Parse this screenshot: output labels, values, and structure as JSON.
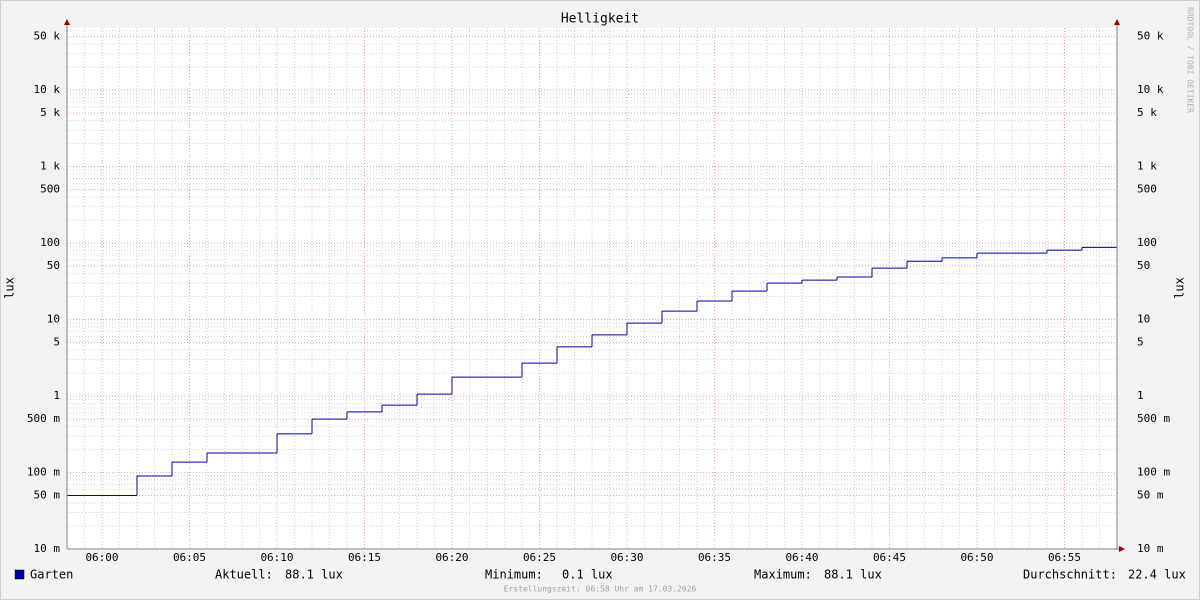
{
  "chart_data": {
    "type": "step",
    "title": "Helligkeit",
    "y_label": "lux",
    "watermark": "RRDTOOL / TOBI OETIKER",
    "footer": "Erstellungszeit: 06:58 Uhr am 17.03.2026",
    "log_y": true,
    "grid": true,
    "xlim": [
      "05:58",
      "06:58"
    ],
    "xticks": [
      "06:00",
      "06:05",
      "06:10",
      "06:15",
      "06:20",
      "06:25",
      "06:30",
      "06:35",
      "06:40",
      "06:45",
      "06:50",
      "06:55"
    ],
    "ylim": [
      0.01,
      65000
    ],
    "yticks": [
      {
        "value": 0.01,
        "label": "10 m"
      },
      {
        "value": 0.05,
        "label": "50 m"
      },
      {
        "value": 0.1,
        "label": "100 m"
      },
      {
        "value": 0.5,
        "label": "500 m"
      },
      1,
      5,
      10,
      50,
      100,
      500,
      {
        "value": 1000,
        "label": "1 k"
      },
      {
        "value": 5000,
        "label": "5 k"
      },
      {
        "value": 10000,
        "label": "10 k"
      },
      {
        "value": 50000,
        "label": "50 k"
      }
    ],
    "x": [
      "05:58",
      "06:02",
      "06:04",
      "06:06",
      "06:10",
      "06:12",
      "06:14",
      "06:16",
      "06:18",
      "06:20",
      "06:24",
      "06:26",
      "06:28",
      "06:30",
      "06:32",
      "06:34",
      "06:36",
      "06:38",
      "06:40",
      "06:42",
      "06:44",
      "06:46",
      "06:48",
      "06:50",
      "06:54",
      "06:56"
    ],
    "series": [
      {
        "name": "Garten",
        "color": "#0000a0",
        "values": [
          0.05,
          0.09,
          0.137,
          0.18,
          0.32,
          0.5,
          0.62,
          0.76,
          1.06,
          1.77,
          2.7,
          4.4,
          6.3,
          9.0,
          12.9,
          17.5,
          23.6,
          30,
          32.8,
          36,
          47,
          58,
          64,
          74,
          81,
          88.1
        ]
      }
    ],
    "legend_stats": [
      {
        "label": "Aktuell:",
        "value": "88.1 lux"
      },
      {
        "label": "Minimum:",
        "value": "0.1 lux"
      },
      {
        "label": "Maximum:",
        "value": "88.1 lux"
      },
      {
        "label": "Durchschnitt:",
        "value": "22.4 lux"
      }
    ]
  }
}
